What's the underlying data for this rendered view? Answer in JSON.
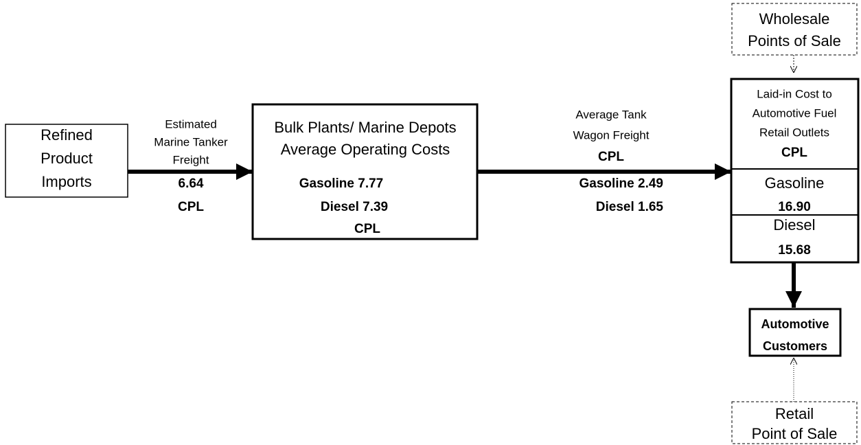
{
  "nodes": {
    "imports": {
      "lines": [
        "Refined",
        "Product",
        "Imports"
      ]
    },
    "marine_freight": {
      "lines": [
        "Estimated",
        "Marine Tanker",
        "Freight"
      ],
      "value": "6.64",
      "unit": "CPL"
    },
    "bulk_plants": {
      "lines": [
        "Bulk Plants/ Marine Depots",
        "Average Operating Costs"
      ],
      "gasoline": "Gasoline 7.77",
      "diesel": "Diesel 7.39",
      "unit": "CPL"
    },
    "tank_wagon": {
      "lines": [
        "Average Tank",
        "Wagon Freight"
      ],
      "unit": "CPL",
      "gasoline": "Gasoline 2.49",
      "diesel": "Diesel 1.65"
    },
    "laid_in": {
      "lines": [
        "Laid-in Cost to",
        "Automotive Fuel",
        "Retail Outlets"
      ],
      "unit": "CPL",
      "gasoline_label": "Gasoline",
      "gasoline_value": "16.90",
      "diesel_label": "Diesel",
      "diesel_value": "15.68"
    },
    "wholesale": {
      "lines": [
        "Wholesale",
        "Points of Sale"
      ]
    },
    "customers": {
      "lines": [
        "Automotive",
        "Customers"
      ]
    },
    "retail": {
      "lines": [
        "Retail",
        "Point of Sale"
      ]
    }
  }
}
